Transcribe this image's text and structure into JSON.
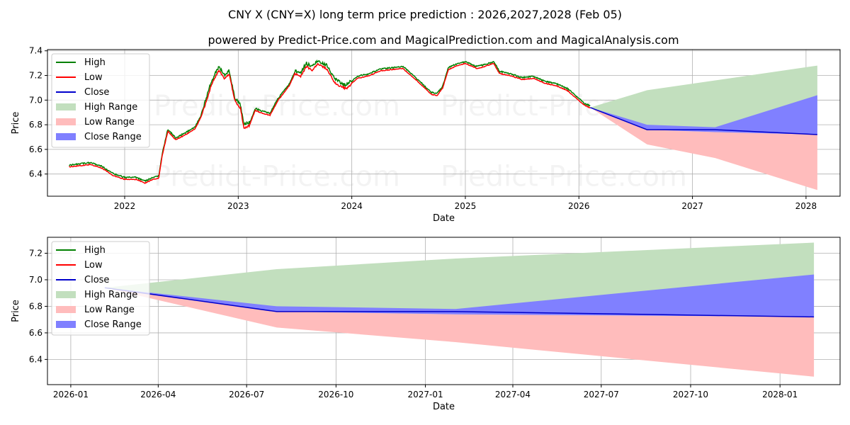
{
  "title": "CNY X (CNY=X) long term price prediction : 2026,2027,2028 (Feb 05)",
  "subtitle": "powered by Predict-Price.com and MagicalPrediction.com and MagicalAnalysis.com",
  "watermark": "Predict-Price.com",
  "colors": {
    "high": "#008000",
    "low": "#ff0000",
    "close": "#0000cc",
    "high_range": "#c2dfbe",
    "low_range": "#ffbcbc",
    "close_range": "#8080ff"
  },
  "legend": [
    "High",
    "Low",
    "Close",
    "High Range",
    "Low Range",
    "Close Range"
  ],
  "chart_data": [
    {
      "type": "line",
      "name": "history-and-forecast",
      "xlabel": "Date",
      "ylabel": "Price",
      "xlim": [
        2021.32,
        2028.3
      ],
      "ylim": [
        6.22,
        7.41
      ],
      "yticks": [
        6.4,
        6.6,
        6.8,
        7.0,
        7.2,
        7.4
      ],
      "xticks": [
        {
          "v": 2022.0,
          "label": "2022"
        },
        {
          "v": 2023.0,
          "label": "2023"
        },
        {
          "v": 2024.0,
          "label": "2024"
        },
        {
          "v": 2025.0,
          "label": "2025"
        },
        {
          "v": 2026.0,
          "label": "2026"
        },
        {
          "v": 2027.0,
          "label": "2027"
        },
        {
          "v": 2028.0,
          "label": "2028"
        }
      ],
      "grid": true,
      "legend_position": "upper-left",
      "history": {
        "x": [
          2021.51,
          2021.6,
          2021.7,
          2021.8,
          2021.9,
          2022.0,
          2022.1,
          2022.18,
          2022.25,
          2022.3,
          2022.33,
          2022.38,
          2022.45,
          2022.55,
          2022.62,
          2022.67,
          2022.72,
          2022.76,
          2022.8,
          2022.83,
          2022.88,
          2022.92,
          2022.97,
          2023.02,
          2023.05,
          2023.1,
          2023.15,
          2023.2,
          2023.28,
          2023.35,
          2023.45,
          2023.5,
          2023.55,
          2023.6,
          2023.65,
          2023.7,
          2023.78,
          2023.85,
          2023.9,
          2023.95,
          2024.05,
          2024.15,
          2024.25,
          2024.35,
          2024.45,
          2024.55,
          2024.62,
          2024.7,
          2024.75,
          2024.8,
          2024.85,
          2024.92,
          2025.0,
          2025.05,
          2025.1,
          2025.15,
          2025.25,
          2025.3,
          2025.4,
          2025.5,
          2025.6,
          2025.7,
          2025.8,
          2025.9,
          2026.0,
          2026.05,
          2026.1
        ],
        "close": [
          6.46,
          6.47,
          6.48,
          6.45,
          6.39,
          6.36,
          6.36,
          6.33,
          6.36,
          6.37,
          6.55,
          6.75,
          6.68,
          6.73,
          6.77,
          6.86,
          7.0,
          7.12,
          7.2,
          7.25,
          7.18,
          7.22,
          7.0,
          6.94,
          6.78,
          6.8,
          6.92,
          6.9,
          6.88,
          7.0,
          7.12,
          7.22,
          7.2,
          7.28,
          7.25,
          7.3,
          7.26,
          7.15,
          7.12,
          7.1,
          7.18,
          7.2,
          7.24,
          7.25,
          7.26,
          7.18,
          7.12,
          7.05,
          7.04,
          7.1,
          7.25,
          7.28,
          7.3,
          7.28,
          7.26,
          7.27,
          7.3,
          7.22,
          7.2,
          7.17,
          7.18,
          7.14,
          7.12,
          7.08,
          7.0,
          6.96,
          6.94
        ]
      },
      "forecast": {
        "x": [
          2026.1,
          2026.6,
          2027.2,
          2028.1
        ],
        "close": [
          6.94,
          6.76,
          6.76,
          6.72
        ],
        "high_range": [
          6.94,
          7.08,
          7.16,
          7.28
        ],
        "low_range": [
          6.94,
          6.64,
          6.53,
          6.27
        ],
        "close_range_upper": [
          6.94,
          6.8,
          6.78,
          7.04
        ],
        "close_range_lower": [
          6.94,
          6.76,
          6.74,
          6.72
        ]
      }
    },
    {
      "type": "line",
      "name": "forecast-zoom",
      "xlabel": "Date",
      "ylabel": "Price",
      "xlim": [
        "2025-12-08",
        "2028-03-03"
      ],
      "ylim": [
        6.21,
        7.32
      ],
      "yticks": [
        6.4,
        6.6,
        6.8,
        7.0,
        7.2
      ],
      "xticks": [
        {
          "label": "2026-01"
        },
        {
          "label": "2026-04"
        },
        {
          "label": "2026-07"
        },
        {
          "label": "2026-10"
        },
        {
          "label": "2027-01"
        },
        {
          "label": "2027-04"
        },
        {
          "label": "2027-07"
        },
        {
          "label": "2027-10"
        },
        {
          "label": "2028-01"
        }
      ],
      "grid": true,
      "legend_position": "upper-left",
      "series": {
        "x": [
          "2026-02-05",
          "2026-08-01",
          "2027-02-01",
          "2028-02-05"
        ],
        "close": [
          6.94,
          6.76,
          6.76,
          6.72
        ],
        "high_range": [
          6.94,
          7.08,
          7.16,
          7.28
        ],
        "low_range": [
          6.94,
          6.64,
          6.53,
          6.27
        ],
        "close_range_upper": [
          6.94,
          6.8,
          6.78,
          7.04
        ],
        "close_range_lower": [
          6.94,
          6.76,
          6.74,
          6.72
        ]
      }
    }
  ]
}
